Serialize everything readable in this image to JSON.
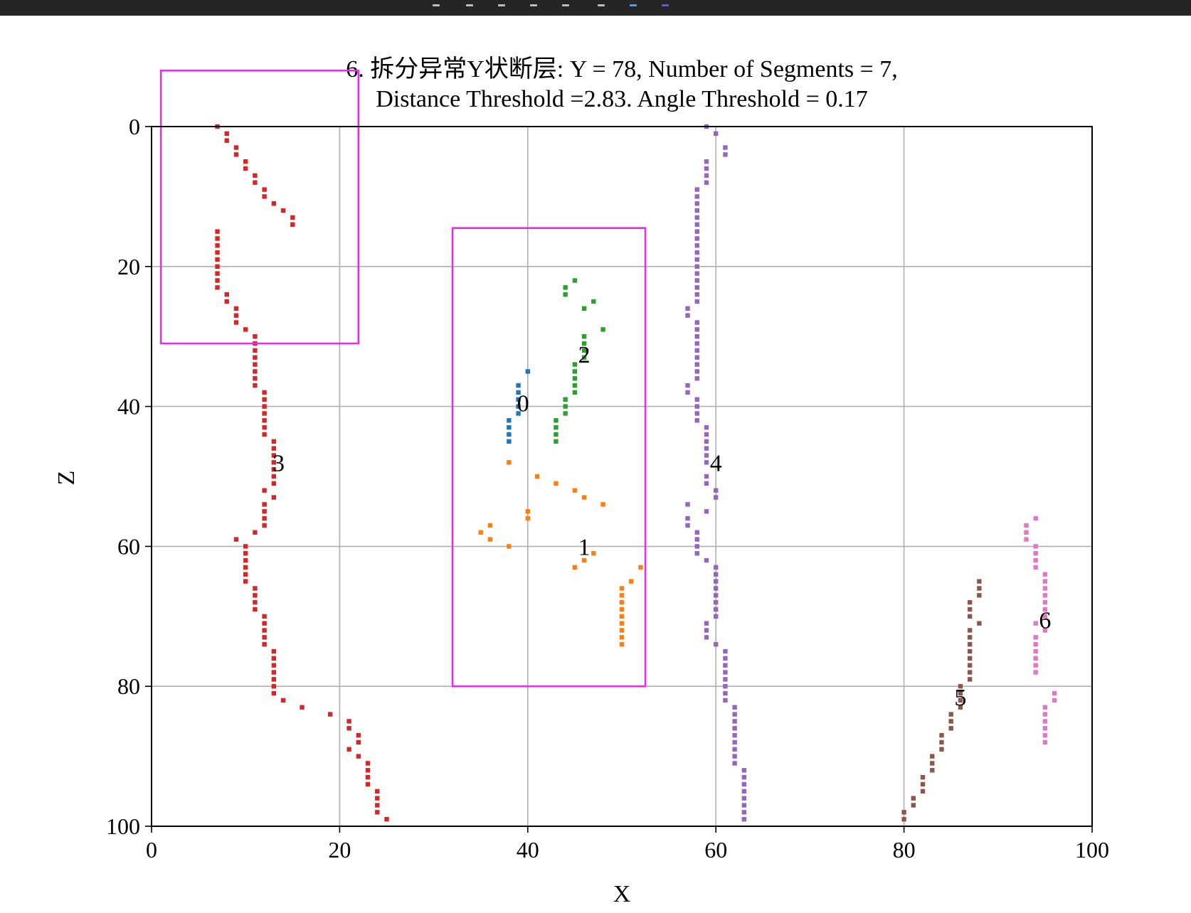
{
  "window": {
    "toolbar_bg": "#252526"
  },
  "chart_data": {
    "type": "scatter",
    "title_lines": [
      "6. 拆分异常Y状断层: Y = 78, Number of Segments = 7,",
      "Distance Threshold =2.83. Angle Threshold = 0.17"
    ],
    "xlabel": "X",
    "ylabel": "Z",
    "xlim": [
      0,
      100
    ],
    "ylim": [
      0,
      100
    ],
    "y_inverted": true,
    "grid": true,
    "xticks": [
      0,
      20,
      40,
      60,
      80,
      100
    ],
    "yticks": [
      0,
      20,
      40,
      60,
      80,
      100
    ],
    "highlight_color": "#e62ee6",
    "highlight_boxes": [
      {
        "x0": 1,
        "x1": 22,
        "z0": -8,
        "z1": 31
      },
      {
        "x0": 32,
        "x1": 52.5,
        "z0": 14.5,
        "z1": 80
      }
    ],
    "series": [
      {
        "name": "0",
        "color": "#1f77b4",
        "label_pos": [
          39.5,
          39.5
        ],
        "points": [
          [
            40,
            35
          ],
          [
            39,
            37
          ],
          [
            39,
            38
          ],
          [
            39,
            39
          ],
          [
            39,
            40
          ],
          [
            39,
            41
          ],
          [
            38,
            42
          ],
          [
            38,
            43
          ],
          [
            38,
            44
          ],
          [
            38,
            45
          ]
        ]
      },
      {
        "name": "1",
        "color": "#ff7f0e",
        "label_pos": [
          46,
          60
        ],
        "points": [
          [
            38,
            48
          ],
          [
            41,
            50
          ],
          [
            43,
            51
          ],
          [
            45,
            52
          ],
          [
            46,
            53
          ],
          [
            48,
            54
          ],
          [
            40,
            55
          ],
          [
            40,
            56
          ],
          [
            36,
            57
          ],
          [
            35,
            58
          ],
          [
            36,
            59
          ],
          [
            38,
            60
          ],
          [
            47,
            61
          ],
          [
            46,
            62
          ],
          [
            45,
            63
          ],
          [
            52,
            63
          ],
          [
            51,
            65
          ],
          [
            50,
            66
          ],
          [
            50,
            67
          ],
          [
            50,
            68
          ],
          [
            50,
            69
          ],
          [
            50,
            70
          ],
          [
            50,
            71
          ],
          [
            50,
            72
          ],
          [
            50,
            73
          ],
          [
            50,
            74
          ]
        ]
      },
      {
        "name": "2",
        "color": "#2ca02c",
        "label_pos": [
          46,
          32.5
        ],
        "points": [
          [
            45,
            22
          ],
          [
            44,
            23
          ],
          [
            44,
            24
          ],
          [
            47,
            25
          ],
          [
            46,
            26
          ],
          [
            48,
            29
          ],
          [
            46,
            30
          ],
          [
            46,
            31
          ],
          [
            46,
            32
          ],
          [
            46,
            33
          ],
          [
            45,
            34
          ],
          [
            45,
            35
          ],
          [
            45,
            36
          ],
          [
            45,
            37
          ],
          [
            45,
            38
          ],
          [
            44,
            39
          ],
          [
            44,
            40
          ],
          [
            44,
            41
          ],
          [
            43,
            42
          ],
          [
            43,
            43
          ],
          [
            43,
            44
          ],
          [
            43,
            45
          ]
        ]
      },
      {
        "name": "3",
        "color": "#d62728",
        "label_pos": [
          13.5,
          48
        ],
        "points": [
          [
            7,
            0
          ],
          [
            8,
            1
          ],
          [
            8,
            2
          ],
          [
            9,
            3
          ],
          [
            9,
            4
          ],
          [
            10,
            5
          ],
          [
            10,
            6
          ],
          [
            11,
            7
          ],
          [
            11,
            8
          ],
          [
            12,
            9
          ],
          [
            12,
            10
          ],
          [
            13,
            11
          ],
          [
            14,
            12
          ],
          [
            15,
            13
          ],
          [
            15,
            14
          ],
          [
            7,
            15
          ],
          [
            7,
            16
          ],
          [
            7,
            17
          ],
          [
            7,
            18
          ],
          [
            7,
            19
          ],
          [
            7,
            20
          ],
          [
            7,
            21
          ],
          [
            7,
            22
          ],
          [
            7,
            23
          ],
          [
            8,
            24
          ],
          [
            8,
            25
          ],
          [
            9,
            26
          ],
          [
            9,
            27
          ],
          [
            9,
            28
          ],
          [
            10,
            29
          ],
          [
            11,
            30
          ],
          [
            11,
            31
          ],
          [
            11,
            32
          ],
          [
            11,
            33
          ],
          [
            11,
            34
          ],
          [
            11,
            35
          ],
          [
            11,
            36
          ],
          [
            11,
            37
          ],
          [
            12,
            38
          ],
          [
            12,
            39
          ],
          [
            12,
            40
          ],
          [
            12,
            41
          ],
          [
            12,
            42
          ],
          [
            12,
            43
          ],
          [
            12,
            44
          ],
          [
            13,
            45
          ],
          [
            13,
            46
          ],
          [
            13,
            47
          ],
          [
            13,
            48
          ],
          [
            13,
            49
          ],
          [
            13,
            50
          ],
          [
            13,
            51
          ],
          [
            12,
            52
          ],
          [
            13,
            53
          ],
          [
            12,
            54
          ],
          [
            12,
            55
          ],
          [
            12,
            56
          ],
          [
            12,
            57
          ],
          [
            11,
            58
          ],
          [
            9,
            59
          ],
          [
            10,
            60
          ],
          [
            10,
            61
          ],
          [
            10,
            62
          ],
          [
            10,
            63
          ],
          [
            10,
            64
          ],
          [
            10,
            65
          ],
          [
            11,
            66
          ],
          [
            11,
            67
          ],
          [
            11,
            68
          ],
          [
            11,
            69
          ],
          [
            12,
            70
          ],
          [
            12,
            71
          ],
          [
            12,
            72
          ],
          [
            12,
            73
          ],
          [
            12,
            74
          ],
          [
            13,
            75
          ],
          [
            13,
            76
          ],
          [
            13,
            77
          ],
          [
            13,
            78
          ],
          [
            13,
            79
          ],
          [
            13,
            80
          ],
          [
            13,
            81
          ],
          [
            14,
            82
          ],
          [
            16,
            83
          ],
          [
            19,
            84
          ],
          [
            21,
            85
          ],
          [
            21,
            86
          ],
          [
            22,
            87
          ],
          [
            22,
            88
          ],
          [
            21,
            89
          ],
          [
            22,
            90
          ],
          [
            23,
            91
          ],
          [
            23,
            92
          ],
          [
            23,
            93
          ],
          [
            23,
            94
          ],
          [
            24,
            95
          ],
          [
            24,
            96
          ],
          [
            24,
            97
          ],
          [
            24,
            98
          ],
          [
            25,
            99
          ]
        ]
      },
      {
        "name": "4",
        "color": "#9467bd",
        "label_pos": [
          60,
          48
        ],
        "points": [
          [
            59,
            0
          ],
          [
            60,
            1
          ],
          [
            61,
            3
          ],
          [
            61,
            4
          ],
          [
            59,
            5
          ],
          [
            59,
            6
          ],
          [
            59,
            7
          ],
          [
            59,
            8
          ],
          [
            58,
            9
          ],
          [
            58,
            10
          ],
          [
            58,
            11
          ],
          [
            58,
            12
          ],
          [
            58,
            13
          ],
          [
            58,
            14
          ],
          [
            58,
            15
          ],
          [
            58,
            16
          ],
          [
            58,
            17
          ],
          [
            58,
            18
          ],
          [
            58,
            19
          ],
          [
            58,
            20
          ],
          [
            58,
            21
          ],
          [
            58,
            22
          ],
          [
            58,
            23
          ],
          [
            58,
            24
          ],
          [
            58,
            25
          ],
          [
            57,
            26
          ],
          [
            57,
            27
          ],
          [
            58,
            28
          ],
          [
            58,
            29
          ],
          [
            58,
            30
          ],
          [
            58,
            31
          ],
          [
            58,
            32
          ],
          [
            58,
            33
          ],
          [
            58,
            34
          ],
          [
            58,
            35
          ],
          [
            58,
            36
          ],
          [
            57,
            37
          ],
          [
            57,
            38
          ],
          [
            58,
            39
          ],
          [
            58,
            40
          ],
          [
            58,
            41
          ],
          [
            58,
            42
          ],
          [
            59,
            43
          ],
          [
            59,
            44
          ],
          [
            59,
            45
          ],
          [
            59,
            46
          ],
          [
            59,
            47
          ],
          [
            59,
            48
          ],
          [
            59,
            50
          ],
          [
            59,
            51
          ],
          [
            60,
            52
          ],
          [
            60,
            53
          ],
          [
            57,
            54
          ],
          [
            59,
            55
          ],
          [
            57,
            56
          ],
          [
            57,
            57
          ],
          [
            58,
            58
          ],
          [
            58,
            59
          ],
          [
            58,
            60
          ],
          [
            58,
            61
          ],
          [
            59,
            62
          ],
          [
            60,
            63
          ],
          [
            60,
            64
          ],
          [
            60,
            65
          ],
          [
            60,
            66
          ],
          [
            60,
            67
          ],
          [
            60,
            68
          ],
          [
            60,
            69
          ],
          [
            60,
            70
          ],
          [
            59,
            71
          ],
          [
            59,
            72
          ],
          [
            59,
            73
          ],
          [
            60,
            74
          ],
          [
            61,
            75
          ],
          [
            61,
            76
          ],
          [
            61,
            77
          ],
          [
            61,
            78
          ],
          [
            61,
            79
          ],
          [
            61,
            80
          ],
          [
            61,
            81
          ],
          [
            61,
            82
          ],
          [
            62,
            83
          ],
          [
            62,
            84
          ],
          [
            62,
            85
          ],
          [
            62,
            86
          ],
          [
            62,
            87
          ],
          [
            62,
            88
          ],
          [
            62,
            89
          ],
          [
            62,
            90
          ],
          [
            62,
            91
          ],
          [
            63,
            92
          ],
          [
            63,
            93
          ],
          [
            63,
            94
          ],
          [
            63,
            95
          ],
          [
            63,
            96
          ],
          [
            63,
            97
          ],
          [
            63,
            98
          ],
          [
            63,
            99
          ]
        ]
      },
      {
        "name": "5",
        "color": "#8c564b",
        "label_pos": [
          86,
          81.5
        ],
        "points": [
          [
            88,
            65
          ],
          [
            88,
            66
          ],
          [
            88,
            67
          ],
          [
            87,
            68
          ],
          [
            87,
            69
          ],
          [
            87,
            70
          ],
          [
            88,
            71
          ],
          [
            87,
            72
          ],
          [
            87,
            73
          ],
          [
            87,
            74
          ],
          [
            87,
            75
          ],
          [
            87,
            76
          ],
          [
            87,
            77
          ],
          [
            87,
            78
          ],
          [
            87,
            79
          ],
          [
            86,
            80
          ],
          [
            86,
            81
          ],
          [
            86,
            82
          ],
          [
            86,
            83
          ],
          [
            85,
            84
          ],
          [
            85,
            85
          ],
          [
            85,
            86
          ],
          [
            84,
            87
          ],
          [
            84,
            88
          ],
          [
            84,
            89
          ],
          [
            83,
            90
          ],
          [
            83,
            91
          ],
          [
            83,
            92
          ],
          [
            82,
            93
          ],
          [
            82,
            94
          ],
          [
            82,
            95
          ],
          [
            81,
            96
          ],
          [
            81,
            97
          ],
          [
            80,
            98
          ],
          [
            80,
            99
          ]
        ]
      },
      {
        "name": "6",
        "color": "#e377c2",
        "label_pos": [
          95,
          70.5
        ],
        "points": [
          [
            94,
            56
          ],
          [
            93,
            57
          ],
          [
            93,
            58
          ],
          [
            93,
            59
          ],
          [
            94,
            60
          ],
          [
            94,
            61
          ],
          [
            94,
            62
          ],
          [
            94,
            63
          ],
          [
            95,
            64
          ],
          [
            95,
            65
          ],
          [
            95,
            66
          ],
          [
            95,
            67
          ],
          [
            95,
            68
          ],
          [
            95,
            69
          ],
          [
            95,
            70
          ],
          [
            94,
            71
          ],
          [
            95,
            72
          ],
          [
            94,
            73
          ],
          [
            94,
            74
          ],
          [
            94,
            75
          ],
          [
            94,
            76
          ],
          [
            94,
            77
          ],
          [
            94,
            78
          ],
          [
            96,
            81
          ],
          [
            96,
            82
          ],
          [
            95,
            83
          ],
          [
            95,
            84
          ],
          [
            95,
            85
          ],
          [
            95,
            86
          ],
          [
            95,
            87
          ],
          [
            95,
            88
          ]
        ]
      }
    ]
  }
}
